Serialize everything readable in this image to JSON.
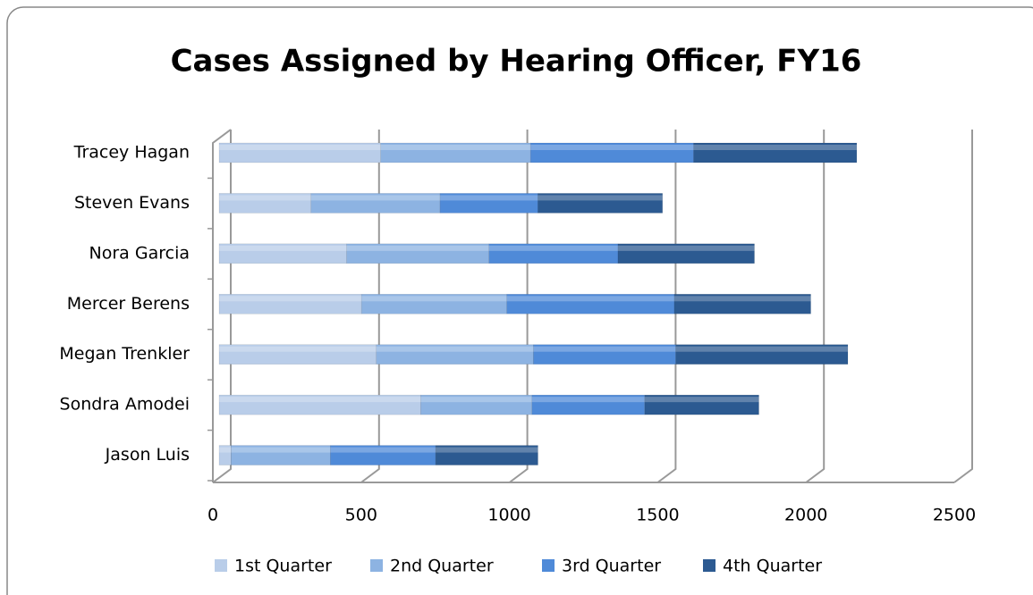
{
  "chart_data": {
    "type": "stacked-bar-horizontal",
    "title": "Cases Assigned by Hearing Officer, FY16",
    "categories": [
      "Tracey Hagan",
      "Steven Evans",
      "Nora Garcia",
      "Mercer Berens",
      "Megan Trenkler",
      "Sondra Amodei",
      "Jason Luis"
    ],
    "series": [
      {
        "name": "1st Quarter",
        "color": "#b9cde9",
        "values": [
          545,
          310,
          430,
          480,
          530,
          680,
          40
        ]
      },
      {
        "name": "2nd Quarter",
        "color": "#8db3e2",
        "values": [
          505,
          435,
          480,
          490,
          530,
          375,
          335
        ]
      },
      {
        "name": "3rd Quarter",
        "color": "#4f8ad8",
        "values": [
          550,
          330,
          435,
          565,
          480,
          380,
          355
        ]
      },
      {
        "name": "4th Quarter",
        "color": "#2c5a91",
        "values": [
          550,
          420,
          460,
          460,
          580,
          385,
          345
        ]
      }
    ],
    "xlim": [
      0,
      2500
    ],
    "xticks": [
      0,
      500,
      1000,
      1500,
      2000,
      2500
    ],
    "grid": true,
    "legend": "bottom"
  }
}
